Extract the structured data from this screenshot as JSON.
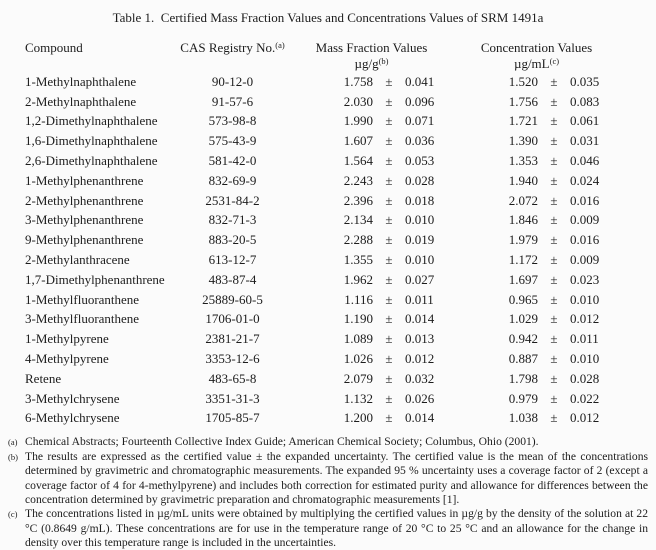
{
  "title": "Table 1.  Certified Mass Fraction Values and Concentrations Values of SRM 1491a",
  "table": {
    "headers": {
      "compound": "Compound",
      "cas": "CAS Registry No.",
      "cas_sup": "(a)",
      "mass_fraction": "Mass Fraction Values",
      "mass_fraction_unit": "µg/g",
      "mass_fraction_sup": "(b)",
      "concentration": "Concentration Values",
      "concentration_unit": "µg/mL",
      "concentration_sup": "(c)"
    },
    "plus_minus": "±",
    "rows": [
      {
        "compound": "1-Methylnaphthalene",
        "cas": "90-12-0",
        "mf": "1.758",
        "mf_u": "0.041",
        "c": "1.520",
        "c_u": "0.035"
      },
      {
        "compound": "2-Methylnaphthalene",
        "cas": "91-57-6",
        "mf": "2.030",
        "mf_u": "0.096",
        "c": "1.756",
        "c_u": "0.083"
      },
      {
        "compound": "1,2-Dimethylnaphthalene",
        "cas": "573-98-8",
        "mf": "1.990",
        "mf_u": "0.071",
        "c": "1.721",
        "c_u": "0.061"
      },
      {
        "compound": "1,6-Dimethylnaphthalene",
        "cas": "575-43-9",
        "mf": "1.607",
        "mf_u": "0.036",
        "c": "1.390",
        "c_u": "0.031"
      },
      {
        "compound": "2,6-Dimethylnaphthalene",
        "cas": "581-42-0",
        "mf": "1.564",
        "mf_u": "0.053",
        "c": "1.353",
        "c_u": "0.046"
      },
      {
        "compound": "1-Methylphenanthrene",
        "cas": "832-69-9",
        "mf": "2.243",
        "mf_u": "0.028",
        "c": "1.940",
        "c_u": "0.024"
      },
      {
        "compound": "2-Methylphenanthrene",
        "cas": "2531-84-2",
        "mf": "2.396",
        "mf_u": "0.018",
        "c": "2.072",
        "c_u": "0.016"
      },
      {
        "compound": "3-Methylphenanthrene",
        "cas": "832-71-3",
        "mf": "2.134",
        "mf_u": "0.010",
        "c": "1.846",
        "c_u": "0.009"
      },
      {
        "compound": "9-Methylphenanthrene",
        "cas": "883-20-5",
        "mf": "2.288",
        "mf_u": "0.019",
        "c": "1.979",
        "c_u": "0.016"
      },
      {
        "compound": "2-Methylanthracene",
        "cas": "613-12-7",
        "mf": "1.355",
        "mf_u": "0.010",
        "c": "1.172",
        "c_u": "0.009"
      },
      {
        "compound": "1,7-Dimethylphenanthrene",
        "cas": "483-87-4",
        "mf": "1.962",
        "mf_u": "0.027",
        "c": "1.697",
        "c_u": "0.023"
      },
      {
        "compound": "1-Methylfluoranthene",
        "cas": "25889-60-5",
        "mf": "1.116",
        "mf_u": "0.011",
        "c": "0.965",
        "c_u": "0.010"
      },
      {
        "compound": "3-Methylfluoranthene",
        "cas": "1706-01-0",
        "mf": "1.190",
        "mf_u": "0.014",
        "c": "1.029",
        "c_u": "0.012"
      },
      {
        "compound": "1-Methylpyrene",
        "cas": "2381-21-7",
        "mf": "1.089",
        "mf_u": "0.013",
        "c": "0.942",
        "c_u": "0.011"
      },
      {
        "compound": "4-Methylpyrene",
        "cas": "3353-12-6",
        "mf": "1.026",
        "mf_u": "0.012",
        "c": "0.887",
        "c_u": "0.010"
      },
      {
        "compound": "Retene",
        "cas": "483-65-8",
        "mf": "2.079",
        "mf_u": "0.032",
        "c": "1.798",
        "c_u": "0.028"
      },
      {
        "compound": "3-Methylchrysene",
        "cas": "3351-31-3",
        "mf": "1.132",
        "mf_u": "0.026",
        "c": "0.979",
        "c_u": "0.022"
      },
      {
        "compound": "6-Methylchrysene",
        "cas": "1705-85-7",
        "mf": "1.200",
        "mf_u": "0.014",
        "c": "1.038",
        "c_u": "0.012"
      }
    ]
  },
  "footnotes": [
    {
      "sup": "(a)",
      "text": "Chemical Abstracts; Fourteenth Collective Index Guide; American Chemical Society; Columbus, Ohio (2001)."
    },
    {
      "sup": "(b)",
      "text": "The results are expressed as the certified value ± the expanded uncertainty.  The certified value is the mean of the concentrations determined by gravimetric and chromatographic measurements.  The expanded 95 % uncertainty uses a coverage factor of 2 (except a coverage factor of 4 for 4-methylpyrene) and includes both correction for estimated purity and allowance for differences between the concentration determined by gravimetric preparation and chromatographic measurements [1]."
    },
    {
      "sup": "(c)",
      "text": "The concentrations listed in µg/mL units were obtained by multiplying the certified values in µg/g by the density of the solution at 22 °C (0.8649 g/mL).  These concentrations are for use in the temperature range of 20 °C to 25 °C and an allowance for the change in density over this temperature range is included in the uncertainties."
    }
  ]
}
